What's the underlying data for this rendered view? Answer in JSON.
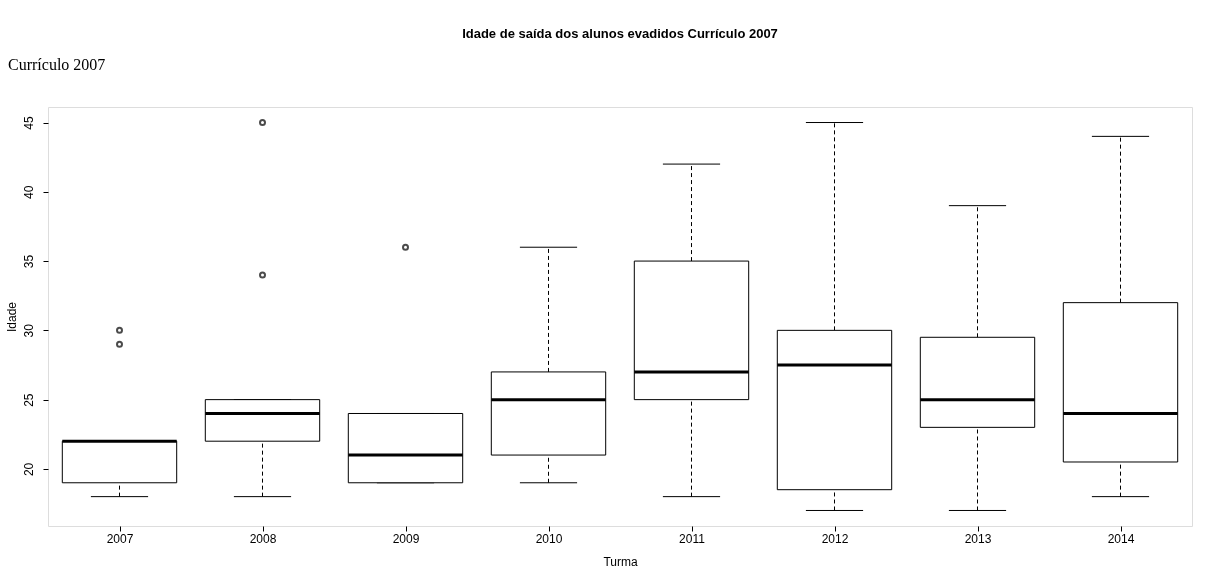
{
  "chart_data": {
    "type": "box",
    "title": "Idade de saída dos alunos evadidos Currículo 2007",
    "xlabel": "Turma",
    "ylabel": "Idade",
    "annotations": [
      "Currículo 2007"
    ],
    "categories": [
      "2007",
      "2008",
      "2009",
      "2010",
      "2011",
      "2012",
      "2013",
      "2014"
    ],
    "boxes": [
      {
        "low": 18,
        "q1": 19,
        "median": 22,
        "q3": 22,
        "high": 22,
        "outliers": [
          29,
          30
        ]
      },
      {
        "low": 18,
        "q1": 22,
        "median": 24,
        "q3": 25,
        "high": 25,
        "outliers": [
          34,
          45
        ]
      },
      {
        "low": 19,
        "q1": 19,
        "median": 21,
        "q3": 24,
        "high": 24,
        "outliers": [
          36
        ]
      },
      {
        "low": 19,
        "q1": 21,
        "median": 25,
        "q3": 27,
        "high": 36
      },
      {
        "low": 18,
        "q1": 25,
        "median": 27,
        "q3": 35,
        "high": 42
      },
      {
        "low": 17,
        "q1": 18.5,
        "median": 27.5,
        "q3": 30,
        "high": 45
      },
      {
        "low": 17,
        "q1": 23,
        "median": 25,
        "q3": 29.5,
        "high": 39
      },
      {
        "low": 18,
        "q1": 20.5,
        "median": 24,
        "q3": 32,
        "high": 44
      }
    ],
    "ylim": [
      15.88,
      46.12
    ],
    "yticks": [
      20,
      25,
      30,
      35,
      40,
      45
    ],
    "grid": false
  }
}
